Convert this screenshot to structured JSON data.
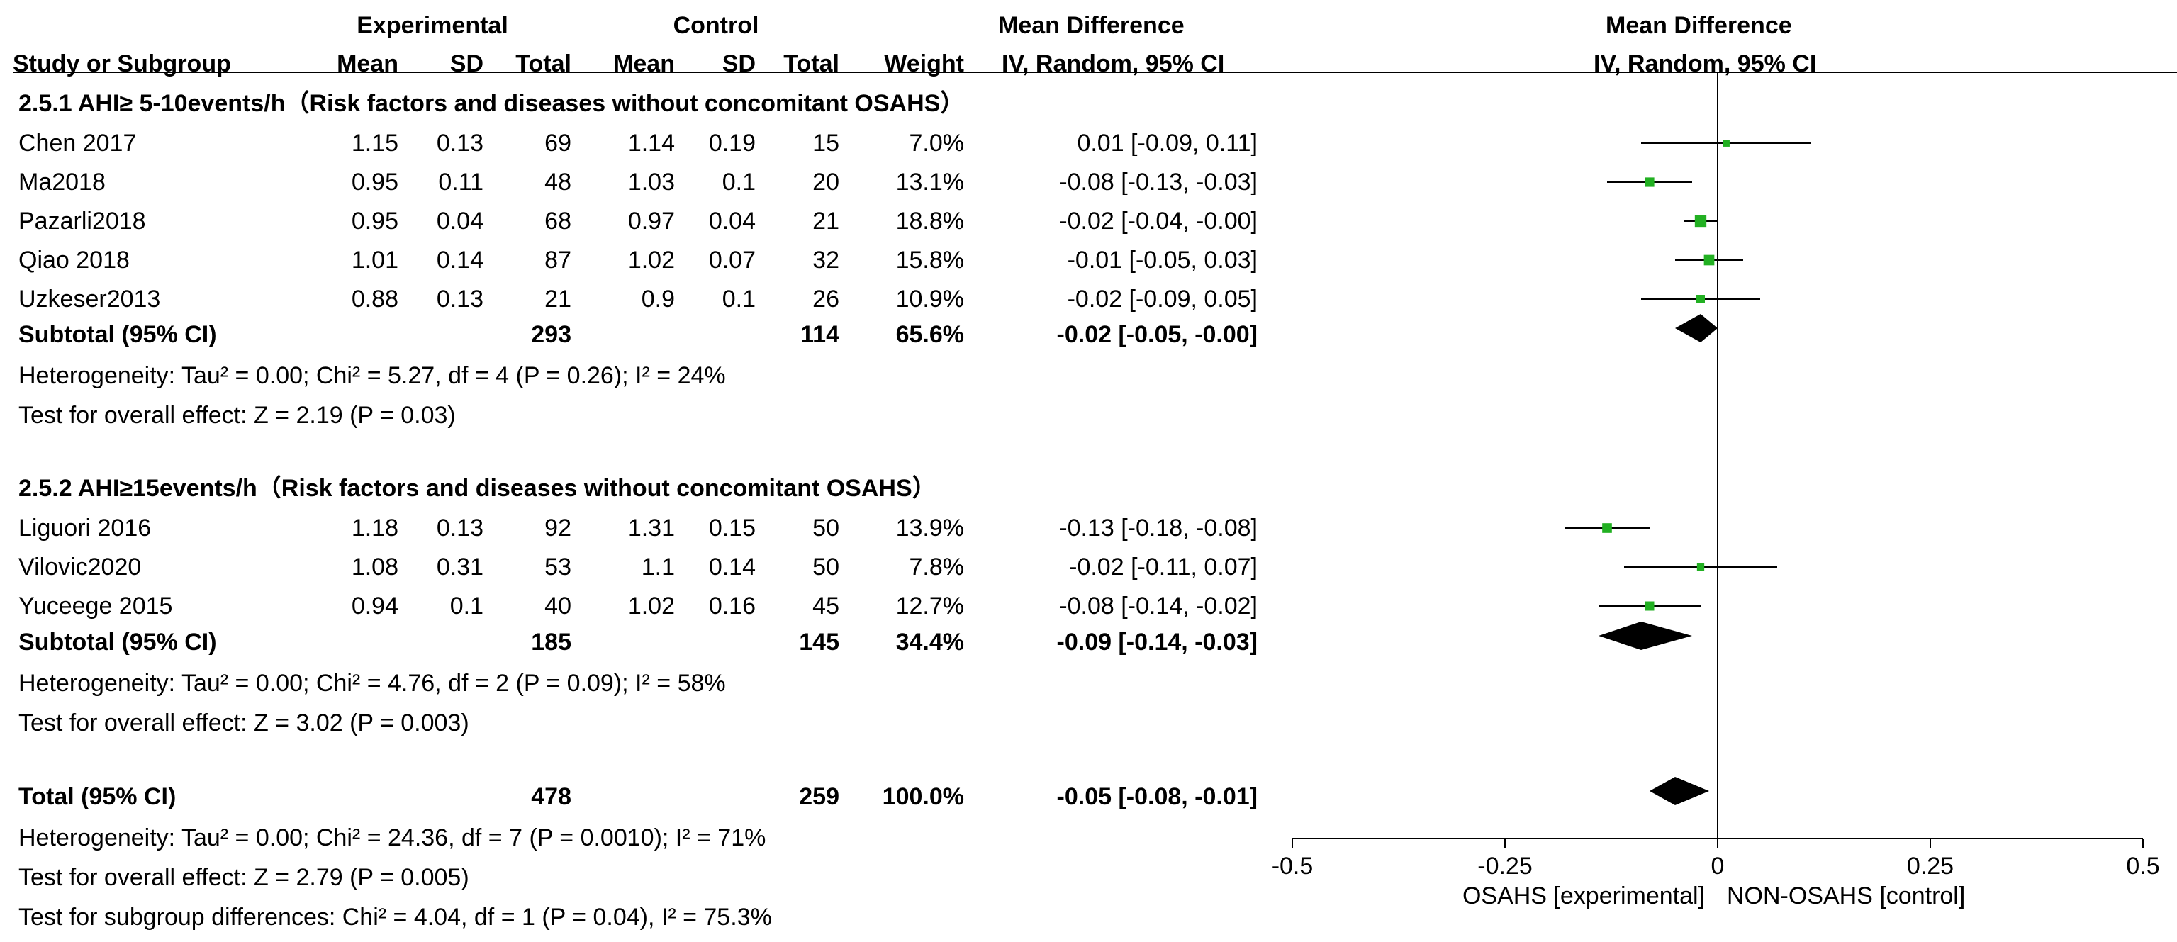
{
  "header": {
    "experimental": "Experimental",
    "control": "Control",
    "md_left": "Mean Difference",
    "md_right": "Mean Difference",
    "study": "Study or Subgroup",
    "mean_e": "Mean",
    "sd_e": "SD",
    "total_e": "Total",
    "mean_c": "Mean",
    "sd_c": "SD",
    "total_c": "Total",
    "weight": "Weight",
    "ci_left": "IV, Random, 95% CI",
    "ci_right": "IV, Random, 95% CI"
  },
  "groups": [
    {
      "title": "2.5.1 AHI≥ 5-10events/h（Risk factors and diseases without concomitant OSAHS）",
      "studies": [
        {
          "name": "Chen 2017",
          "mean_e": "1.15",
          "sd_e": "0.13",
          "total_e": "69",
          "mean_c": "1.14",
          "sd_c": "0.19",
          "total_c": "15",
          "weight": "7.0%",
          "ci": "0.01 [-0.09, 0.11]"
        },
        {
          "name": "Ma2018",
          "mean_e": "0.95",
          "sd_e": "0.11",
          "total_e": "48",
          "mean_c": "1.03",
          "sd_c": "0.1",
          "total_c": "20",
          "weight": "13.1%",
          "ci": "-0.08 [-0.13, -0.03]"
        },
        {
          "name": "Pazarli2018",
          "mean_e": "0.95",
          "sd_e": "0.04",
          "total_e": "68",
          "mean_c": "0.97",
          "sd_c": "0.04",
          "total_c": "21",
          "weight": "18.8%",
          "ci": "-0.02 [-0.04, -0.00]"
        },
        {
          "name": "Qiao 2018",
          "mean_e": "1.01",
          "sd_e": "0.14",
          "total_e": "87",
          "mean_c": "1.02",
          "sd_c": "0.07",
          "total_c": "32",
          "weight": "15.8%",
          "ci": "-0.01 [-0.05, 0.03]"
        },
        {
          "name": "Uzkeser2013",
          "mean_e": "0.88",
          "sd_e": "0.13",
          "total_e": "21",
          "mean_c": "0.9",
          "sd_c": "0.1",
          "total_c": "26",
          "weight": "10.9%",
          "ci": "-0.02 [-0.09, 0.05]"
        }
      ],
      "subtotal": {
        "label": "Subtotal (95% CI)",
        "total_e": "293",
        "total_c": "114",
        "weight": "65.6%",
        "ci": "-0.02 [-0.05, -0.00]"
      },
      "heterogeneity": "Heterogeneity: Tau² = 0.00; Chi² = 5.27, df = 4 (P = 0.26); I² = 24%",
      "overall": "Test for overall effect: Z = 2.19 (P = 0.03)"
    },
    {
      "title": "2.5.2 AHI≥15events/h（Risk factors and diseases without concomitant OSAHS）",
      "studies": [
        {
          "name": "Liguori 2016",
          "mean_e": "1.18",
          "sd_e": "0.13",
          "total_e": "92",
          "mean_c": "1.31",
          "sd_c": "0.15",
          "total_c": "50",
          "weight": "13.9%",
          "ci": "-0.13 [-0.18, -0.08]"
        },
        {
          "name": "Vilovic2020",
          "mean_e": "1.08",
          "sd_e": "0.31",
          "total_e": "53",
          "mean_c": "1.1",
          "sd_c": "0.14",
          "total_c": "50",
          "weight": "7.8%",
          "ci": "-0.02 [-0.11, 0.07]"
        },
        {
          "name": "Yuceege 2015",
          "mean_e": "0.94",
          "sd_e": "0.1",
          "total_e": "40",
          "mean_c": "1.02",
          "sd_c": "0.16",
          "total_c": "45",
          "weight": "12.7%",
          "ci": "-0.08 [-0.14, -0.02]"
        }
      ],
      "subtotal": {
        "label": "Subtotal (95% CI)",
        "total_e": "185",
        "total_c": "145",
        "weight": "34.4%",
        "ci": "-0.09 [-0.14, -0.03]"
      },
      "heterogeneity": "Heterogeneity: Tau² = 0.00; Chi² = 4.76, df = 2 (P = 0.09); I² = 58%",
      "overall": "Test for overall effect: Z = 3.02 (P = 0.003)"
    }
  ],
  "total": {
    "label": "Total (95% CI)",
    "total_e": "478",
    "total_c": "259",
    "weight": "100.0%",
    "ci": "-0.05 [-0.08, -0.01]"
  },
  "total_heterogeneity": "Heterogeneity: Tau² = 0.00; Chi² = 24.36, df = 7 (P = 0.0010); I² = 71%",
  "total_overall": "Test for overall effect: Z = 2.79 (P = 0.005)",
  "subgroup_diff": "Test for subgroup differences: Chi² = 4.04, df = 1 (P = 0.04), I² = 75.3%",
  "colors": {
    "marker": "#22b022",
    "line": "#000000"
  },
  "chart_data": {
    "type": "forest",
    "title": "Mean Difference IV, Random, 95% CI",
    "xlim": [
      -0.5,
      0.5
    ],
    "xticks": [
      -0.5,
      -0.25,
      0,
      0.25,
      0.5
    ],
    "xtick_labels": [
      "-0.5",
      "-0.25",
      "0",
      "0.25",
      "0.5"
    ],
    "xlabel_left": "OSAHS [experimental]",
    "xlabel_right": "NON-OSAHS [control]",
    "studies": [
      {
        "name": "Chen 2017",
        "md": 0.01,
        "lo": -0.09,
        "hi": 0.11,
        "weight": 7.0
      },
      {
        "name": "Ma2018",
        "md": -0.08,
        "lo": -0.13,
        "hi": -0.03,
        "weight": 13.1
      },
      {
        "name": "Pazarli2018",
        "md": -0.02,
        "lo": -0.04,
        "hi": -0.0,
        "weight": 18.8
      },
      {
        "name": "Qiao 2018",
        "md": -0.01,
        "lo": -0.05,
        "hi": 0.03,
        "weight": 15.8
      },
      {
        "name": "Uzkeser2013",
        "md": -0.02,
        "lo": -0.09,
        "hi": 0.05,
        "weight": 10.9
      },
      {
        "name": "Liguori 2016",
        "md": -0.13,
        "lo": -0.18,
        "hi": -0.08,
        "weight": 13.9
      },
      {
        "name": "Vilovic2020",
        "md": -0.02,
        "lo": -0.11,
        "hi": 0.07,
        "weight": 7.8
      },
      {
        "name": "Yuceege 2015",
        "md": -0.08,
        "lo": -0.14,
        "hi": -0.02,
        "weight": 12.7
      }
    ],
    "summaries": [
      {
        "name": "Subtotal 2.5.1",
        "md": -0.02,
        "lo": -0.05,
        "hi": -0.0
      },
      {
        "name": "Subtotal 2.5.2",
        "md": -0.09,
        "lo": -0.14,
        "hi": -0.03
      },
      {
        "name": "Total",
        "md": -0.05,
        "lo": -0.08,
        "hi": -0.01
      }
    ]
  }
}
